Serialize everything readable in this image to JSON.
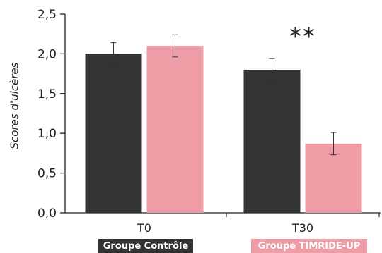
{
  "chart_data": {
    "type": "bar",
    "categories": [
      "T0",
      "T30"
    ],
    "series": [
      {
        "name": "Groupe Contrôle",
        "values": [
          2.0,
          1.8
        ],
        "errors": [
          0.14,
          0.14
        ],
        "color": "#333333"
      },
      {
        "name": "Groupe TIMRIDE-UP",
        "values": [
          2.1,
          0.87
        ],
        "errors": [
          0.14,
          0.14
        ],
        "color": "#ee9ca6"
      }
    ],
    "ylabel": "Scores d'ulcères",
    "xlabel": "",
    "ylim": [
      0,
      2.5
    ],
    "yticks": [
      "0,0",
      "0,5",
      "1,0",
      "1,5",
      "2,0",
      "2,5"
    ],
    "annotations": [
      {
        "category": "T30",
        "text": "**"
      }
    ],
    "grid": false,
    "legend_position": "bottom"
  }
}
